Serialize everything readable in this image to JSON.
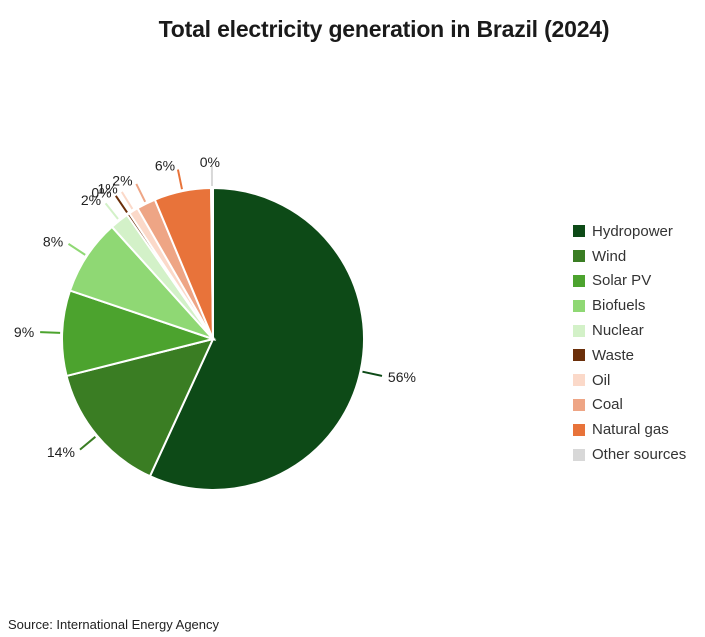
{
  "chart_data": {
    "type": "pie",
    "title": "Total electricity generation in Brazil (2024)",
    "source": "Source: International Energy Agency",
    "slices": [
      {
        "label": "Hydropower",
        "value": 56,
        "display": "56%",
        "color": "#0d4a17"
      },
      {
        "label": "Wind",
        "value": 14,
        "display": "14%",
        "color": "#3a7d23"
      },
      {
        "label": "Solar PV",
        "value": 9,
        "display": "9%",
        "color": "#4ca32e"
      },
      {
        "label": "Biofuels",
        "value": 8,
        "display": "8%",
        "color": "#8fd874"
      },
      {
        "label": "Nuclear",
        "value": 2,
        "display": "2%",
        "color": "#d3f1c8"
      },
      {
        "label": "Waste",
        "value": 0.3,
        "display": "0%",
        "color": "#6b2f0a"
      },
      {
        "label": "Oil",
        "value": 1,
        "display": "1%",
        "color": "#fbd9c9"
      },
      {
        "label": "Coal",
        "value": 2,
        "display": "2%",
        "color": "#eea585"
      },
      {
        "label": "Natural gas",
        "value": 6,
        "display": "6%",
        "color": "#e8733a"
      },
      {
        "label": "Other sources",
        "value": 0.2,
        "display": "0%",
        "color": "#d8d8d8"
      }
    ],
    "legend_position": "right"
  }
}
